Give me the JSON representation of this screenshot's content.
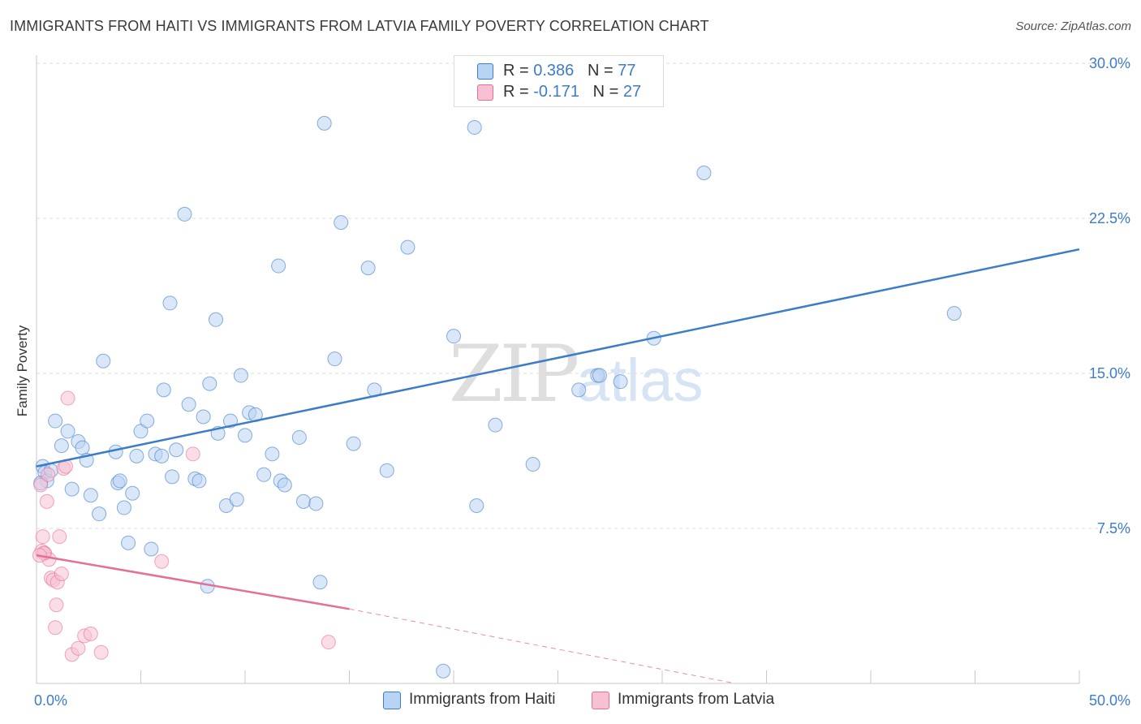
{
  "title": "IMMIGRANTS FROM HAITI VS IMMIGRANTS FROM LATVIA FAMILY POVERTY CORRELATION CHART",
  "source": "Source: ZipAtlas.com",
  "watermark": {
    "zip": "ZIP",
    "atlas": "atlas"
  },
  "colors": {
    "haiti": "#3d7cc9",
    "haiti_fill": "#b9d3f2",
    "latvia": "#e46f97",
    "latvia_fill": "#f7c1d3",
    "grid": "#dddddd",
    "tick": "#3d7cc9"
  },
  "legend": {
    "haiti": {
      "r_label": "R = ",
      "r_value": "0.386",
      "n_label": "N = ",
      "n_value": "77"
    },
    "latvia": {
      "r_label": "R = ",
      "r_value": "-0.171",
      "n_label": "N = ",
      "n_value": "27"
    }
  },
  "chart_data": {
    "type": "scatter",
    "title": "IMMIGRANTS FROM HAITI VS IMMIGRANTS FROM LATVIA FAMILY POVERTY CORRELATION CHART",
    "xlabel": "",
    "ylabel": "Family Poverty",
    "xlim": [
      0,
      50
    ],
    "ylim": [
      0,
      30
    ],
    "x_ticks": [
      "0.0%",
      "50.0%"
    ],
    "y_ticks": [
      "7.5%",
      "15.0%",
      "22.5%",
      "30.0%"
    ],
    "y_tick_values": [
      7.5,
      15.0,
      22.5,
      30.0
    ],
    "grid": true,
    "legend_placement": "top-center",
    "series": [
      {
        "name": "Immigrants from Haiti",
        "trend": {
          "x": [
            0,
            50
          ],
          "y": [
            10.5,
            21.0
          ]
        },
        "points": [
          [
            0.3,
            10.5
          ],
          [
            0.4,
            10.2
          ],
          [
            0.5,
            9.8
          ],
          [
            0.7,
            10.3
          ],
          [
            0.9,
            12.7
          ],
          [
            1.2,
            11.5
          ],
          [
            1.5,
            12.2
          ],
          [
            1.7,
            9.4
          ],
          [
            2.0,
            11.7
          ],
          [
            2.2,
            11.4
          ],
          [
            2.4,
            10.8
          ],
          [
            2.6,
            9.1
          ],
          [
            3.0,
            8.2
          ],
          [
            3.2,
            15.6
          ],
          [
            3.8,
            11.2
          ],
          [
            3.9,
            9.7
          ],
          [
            4.0,
            9.8
          ],
          [
            4.2,
            8.5
          ],
          [
            4.4,
            6.8
          ],
          [
            4.6,
            9.2
          ],
          [
            4.8,
            11.0
          ],
          [
            5.0,
            12.2
          ],
          [
            5.3,
            12.7
          ],
          [
            5.5,
            6.5
          ],
          [
            5.7,
            11.1
          ],
          [
            6.0,
            11.0
          ],
          [
            6.1,
            14.2
          ],
          [
            6.4,
            18.4
          ],
          [
            6.5,
            10.0
          ],
          [
            6.7,
            11.3
          ],
          [
            7.1,
            22.7
          ],
          [
            7.3,
            13.5
          ],
          [
            7.6,
            9.9
          ],
          [
            7.8,
            9.8
          ],
          [
            8.0,
            12.9
          ],
          [
            8.2,
            4.7
          ],
          [
            8.3,
            14.5
          ],
          [
            8.6,
            17.6
          ],
          [
            8.7,
            12.1
          ],
          [
            9.1,
            8.6
          ],
          [
            9.3,
            12.7
          ],
          [
            9.6,
            8.9
          ],
          [
            9.8,
            14.9
          ],
          [
            10.0,
            12.0
          ],
          [
            10.2,
            13.1
          ],
          [
            10.5,
            13.0
          ],
          [
            10.9,
            10.1
          ],
          [
            11.3,
            11.1
          ],
          [
            11.6,
            20.2
          ],
          [
            11.7,
            9.8
          ],
          [
            11.9,
            9.6
          ],
          [
            12.6,
            11.9
          ],
          [
            12.8,
            8.8
          ],
          [
            13.4,
            8.7
          ],
          [
            13.6,
            4.9
          ],
          [
            13.8,
            27.1
          ],
          [
            14.3,
            15.7
          ],
          [
            14.6,
            22.3
          ],
          [
            15.2,
            11.6
          ],
          [
            15.9,
            20.1
          ],
          [
            16.2,
            14.2
          ],
          [
            16.8,
            10.3
          ],
          [
            17.8,
            21.1
          ],
          [
            19.5,
            0.6
          ],
          [
            20.0,
            16.8
          ],
          [
            21.0,
            26.9
          ],
          [
            21.1,
            8.6
          ],
          [
            22.0,
            12.5
          ],
          [
            23.8,
            10.6
          ],
          [
            26.0,
            14.2
          ],
          [
            26.9,
            14.9
          ],
          [
            27.0,
            14.9
          ],
          [
            28.0,
            14.6
          ],
          [
            29.6,
            16.7
          ],
          [
            32.0,
            24.7
          ],
          [
            44.0,
            17.9
          ],
          [
            0.2,
            9.7
          ]
        ]
      },
      {
        "name": "Immigrants from Latvia",
        "trend": {
          "x": [
            0,
            15.0
          ],
          "y": [
            6.2,
            3.6
          ]
        },
        "trend_dashed": {
          "x": [
            15.0,
            33.5
          ],
          "y": [
            3.6,
            0.0
          ]
        },
        "points": [
          [
            0.2,
            9.6
          ],
          [
            0.25,
            6.4
          ],
          [
            0.3,
            7.1
          ],
          [
            0.4,
            6.3
          ],
          [
            0.5,
            8.8
          ],
          [
            0.6,
            6.0
          ],
          [
            0.7,
            5.1
          ],
          [
            0.8,
            5.0
          ],
          [
            0.9,
            2.7
          ],
          [
            0.95,
            3.8
          ],
          [
            1.0,
            4.9
          ],
          [
            1.1,
            7.1
          ],
          [
            1.2,
            5.3
          ],
          [
            1.3,
            10.4
          ],
          [
            1.4,
            10.5
          ],
          [
            1.5,
            13.8
          ],
          [
            1.7,
            1.4
          ],
          [
            2.0,
            1.7
          ],
          [
            2.3,
            2.3
          ],
          [
            2.6,
            2.4
          ],
          [
            3.1,
            1.5
          ],
          [
            6.0,
            5.9
          ],
          [
            7.5,
            11.1
          ],
          [
            14.0,
            2.0
          ],
          [
            0.35,
            6.3
          ],
          [
            0.55,
            10.1
          ],
          [
            0.15,
            6.2
          ]
        ]
      }
    ],
    "bottom_legend": [
      "Immigrants from Haiti",
      "Immigrants from Latvia"
    ]
  }
}
